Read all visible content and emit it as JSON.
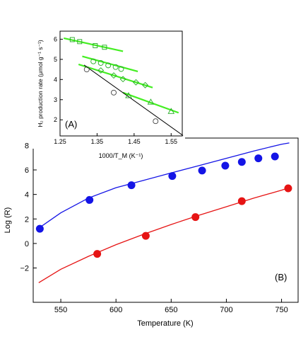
{
  "chart_data": [
    {
      "panel_label": "(B)",
      "type": "scatter",
      "title": "",
      "xlabel": "Temperature (K)",
      "ylabel": "Log (R)",
      "xlim": [
        525,
        765
      ],
      "ylim": [
        -4.8,
        8.6
      ],
      "xticks": [
        550,
        600,
        650,
        700,
        750
      ],
      "yticks": [
        -2,
        0,
        2,
        4,
        6,
        8
      ],
      "series": [
        {
          "color": "#1414e6",
          "points": [
            [
              531,
              1.2
            ],
            [
              576,
              3.55
            ],
            [
              614,
              4.75
            ],
            [
              651,
              5.5
            ],
            [
              678,
              5.95
            ],
            [
              699,
              6.35
            ],
            [
              714,
              6.65
            ],
            [
              729,
              6.95
            ],
            [
              744,
              7.1
            ]
          ],
          "fit": [
            [
              530,
              1.25
            ],
            [
              550,
              2.5
            ],
            [
              575,
              3.7
            ],
            [
              600,
              4.55
            ],
            [
              625,
              5.15
            ],
            [
              650,
              5.75
            ],
            [
              675,
              6.35
            ],
            [
              700,
              6.95
            ],
            [
              725,
              7.55
            ],
            [
              750,
              8.1
            ],
            [
              757,
              8.2
            ]
          ]
        },
        {
          "color": "#e61414",
          "points": [
            [
              583,
              -0.85
            ],
            [
              627,
              0.62
            ],
            [
              672,
              2.15
            ],
            [
              714,
              3.45
            ],
            [
              756,
              4.5
            ]
          ],
          "fit": [
            [
              530,
              -3.2
            ],
            [
              550,
              -2.1
            ],
            [
              575,
              -1.05
            ],
            [
              600,
              -0.1
            ],
            [
              625,
              0.75
            ],
            [
              650,
              1.55
            ],
            [
              675,
              2.3
            ],
            [
              700,
              3.0
            ],
            [
              725,
              3.7
            ],
            [
              750,
              4.35
            ],
            [
              757,
              4.55
            ]
          ]
        }
      ]
    },
    {
      "panel_label": "(A)",
      "type": "scatter",
      "title": "",
      "xlabel": "1000/T_M (K⁻¹)",
      "ylabel": "H₂ production rate (μmol g⁻¹ s⁻¹)",
      "xlim": [
        1.25,
        1.58
      ],
      "ylim": [
        1.2,
        6.4
      ],
      "xticks": [
        "1.25",
        "1.35",
        "1.45",
        "1.55"
      ],
      "yticks": [
        2,
        3,
        4,
        5,
        6
      ],
      "series": [
        {
          "marker": "square",
          "color": "#22aa22",
          "points": [
            [
              1.283,
              5.98
            ],
            [
              1.303,
              5.88
            ],
            [
              1.345,
              5.68
            ],
            [
              1.37,
              5.6
            ]
          ],
          "fit": [
            [
              1.26,
              6.05
            ],
            [
              1.42,
              5.4
            ]
          ]
        },
        {
          "marker": "circle",
          "color": "#22aa22",
          "points": [
            [
              1.34,
              4.9
            ],
            [
              1.36,
              4.82
            ],
            [
              1.38,
              4.7
            ],
            [
              1.4,
              4.62
            ],
            [
              1.415,
              4.52
            ]
          ],
          "fit": [
            [
              1.31,
              5.15
            ],
            [
              1.46,
              4.4
            ]
          ]
        },
        {
          "marker": "diamond",
          "color": "#22aa22",
          "points": [
            [
              1.36,
              4.45
            ],
            [
              1.395,
              4.2
            ],
            [
              1.42,
              4.02
            ],
            [
              1.455,
              3.86
            ],
            [
              1.48,
              3.72
            ]
          ],
          "fit": [
            [
              1.3,
              4.75
            ],
            [
              1.5,
              3.6
            ]
          ]
        },
        {
          "marker": "triangle",
          "color": "#22aa22",
          "points": [
            [
              1.435,
              3.2
            ],
            [
              1.495,
              2.88
            ],
            [
              1.55,
              2.42
            ]
          ],
          "fit": [
            [
              1.42,
              3.35
            ],
            [
              1.57,
              2.35
            ]
          ]
        },
        {
          "marker": "circle",
          "color": "#000000",
          "points": [
            [
              1.322,
              4.5
            ],
            [
              1.395,
              3.35
            ],
            [
              1.508,
              1.93
            ]
          ],
          "fit": [
            [
              1.315,
              4.72
            ],
            [
              1.582,
              1.22
            ]
          ]
        }
      ]
    }
  ]
}
